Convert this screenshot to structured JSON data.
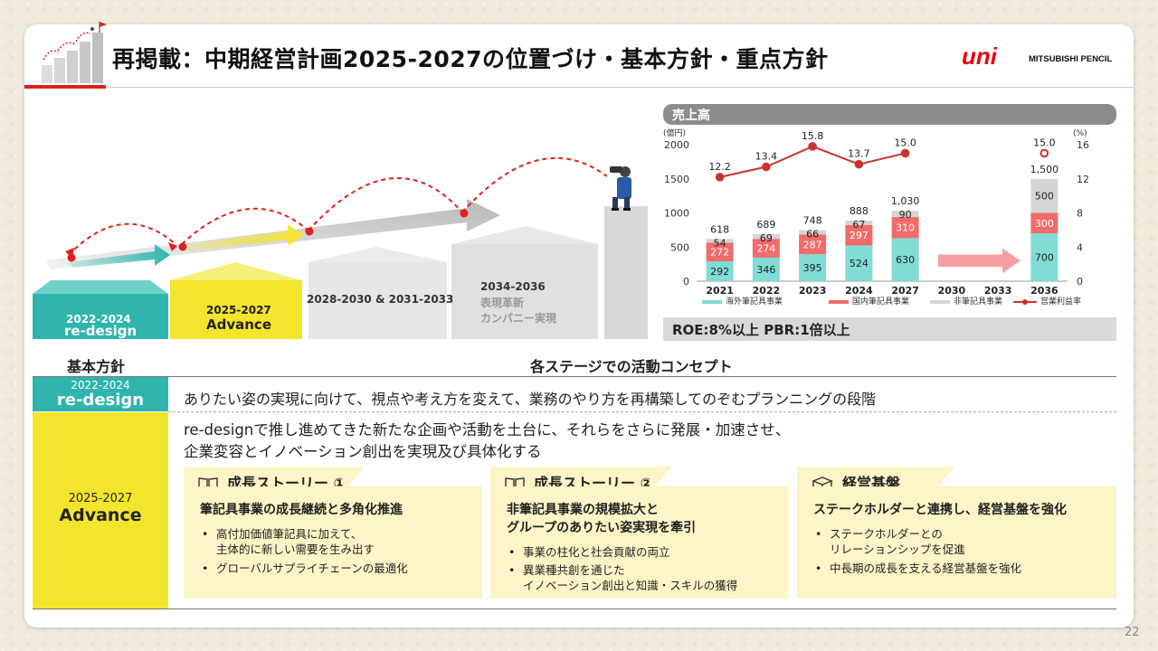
{
  "slide": {
    "title": "再掲載：中期経営計画2025-2027の位置づけ・基本方針・重点方針",
    "logo_text": "MITSUBISHI PENCIL",
    "logo_mark": "uni",
    "page_number": "22"
  },
  "roadmap": {
    "stages": [
      {
        "years": "2022-2024",
        "name": "re-design",
        "color": "#2fb5ad"
      },
      {
        "years": "2025-2027",
        "name": "Advance",
        "color": "#f3e52b"
      },
      {
        "years": "2028-2030 & 2031-2033",
        "name": "",
        "color": "#e6e6e6"
      },
      {
        "years": "2034-2036",
        "name": "表現革新\nカンパニー実現",
        "color": "#e0e0e0"
      }
    ],
    "stage4_name_line1": "表現革新",
    "stage4_name_line2": "カンパニー実現"
  },
  "chart_panel": {
    "header": "売上高",
    "roe_text": "ROE:8%以上  PBR:1倍以上"
  },
  "chart_data": {
    "type": "bar",
    "title": "売上高",
    "categories": [
      "2021",
      "2022",
      "2023",
      "2024",
      "2027",
      "2030",
      "2033",
      "2036"
    ],
    "left_axis_unit": "(億円)",
    "right_axis_unit": "(%)",
    "ylim": [
      0,
      2000
    ],
    "y2lim": [
      0,
      16
    ],
    "yticks": [
      0,
      500,
      1000,
      1500,
      2000
    ],
    "y2ticks": [
      0,
      4,
      8,
      12,
      16
    ],
    "stacked": true,
    "series": [
      {
        "name": "海外筆記具事業",
        "color": "#80dcd5",
        "values": [
          292,
          346,
          395,
          524,
          630,
          null,
          null,
          700
        ]
      },
      {
        "name": "国内筆記具事業",
        "color": "#f26b6b",
        "values": [
          272,
          274,
          287,
          297,
          310,
          null,
          null,
          300
        ]
      },
      {
        "name": "非筆記具事業",
        "color": "#d4d4d4",
        "values": [
          54,
          69,
          66,
          67,
          90,
          null,
          null,
          500
        ]
      }
    ],
    "totals": [
      "618",
      "689",
      "748",
      "888",
      "1,030",
      null,
      null,
      "1,500"
    ],
    "line_series": {
      "name": "営業利益率",
      "color": "#c8352b",
      "values": [
        12.2,
        13.4,
        15.8,
        13.7,
        15.0,
        null,
        null,
        15.0
      ],
      "labels": [
        "12.2",
        "13.4",
        "15.8",
        "13.7",
        "15.0",
        null,
        null,
        "15.0"
      ]
    }
  },
  "table": {
    "col1_header": "基本方針",
    "col2_header": "各ステージでの活動コンセプト",
    "row1": {
      "years": "2022-2024",
      "name": "re-design",
      "text": "ありたい姿の実現に向けて、視点や考え方を変えて、業務のやり方を再構築してのぞむプランニングの段階"
    },
    "row2": {
      "years": "2025-2027",
      "name": "Advance",
      "text_line1": "re-designで推し進めてきた新たな企画や活動を土台に、それらをさらに発展・加速させ、",
      "text_line2": "企業変容とイノベーション創出を実現及び具体化する"
    },
    "pillars": [
      {
        "tab": "成長ストーリー ①",
        "icon": "book-icon",
        "head_line1": "筆記具事業の成長継続と多角化推進",
        "head_line2": "",
        "bullets": [
          {
            "line1": "高付加価値筆記具に加えて、",
            "line2": "主体的に新しい需要を生み出す"
          },
          {
            "line1": "グローバルサプライチェーンの最適化",
            "line2": ""
          }
        ]
      },
      {
        "tab": "成長ストーリー ②",
        "icon": "book-icon",
        "head_line1": "非筆記具事業の規模拡大と",
        "head_line2": "グループのありたい姿実現を牽引",
        "bullets": [
          {
            "line1": "事業の柱化と社会貢献の両立",
            "line2": ""
          },
          {
            "line1": "異業種共創を通じた",
            "line2": "イノベーション創出と知識・スキルの獲得"
          }
        ]
      },
      {
        "tab": "経営基盤",
        "icon": "box-icon",
        "head_line1": "ステークホルダーと連携し、経営基盤を強化",
        "head_line2": "",
        "bullets": [
          {
            "line1": "ステークホルダーとの",
            "line2": "リレーションシップを促進"
          },
          {
            "line1": "中長期の成長を支える経営基盤を強化",
            "line2": ""
          }
        ]
      }
    ]
  }
}
